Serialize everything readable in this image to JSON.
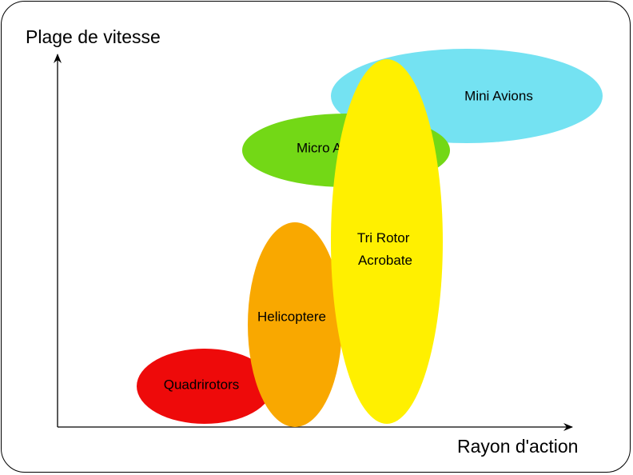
{
  "diagram": {
    "y_axis_title": "Plage de vitesse",
    "x_axis_title": "Rayon d'action",
    "zones": [
      {
        "name": "mini-avions",
        "lines": [
          "Mini Avions"
        ],
        "color": "#74e2f2"
      },
      {
        "name": "micro-avions",
        "lines": [
          "Micro Avions"
        ],
        "color": "#73d816"
      },
      {
        "name": "quadrirotors",
        "lines": [
          "Quadrirotors"
        ],
        "color": "#ee0a0a"
      },
      {
        "name": "helicoptere",
        "lines": [
          "Helicoptere"
        ],
        "color": "#f9a800"
      },
      {
        "name": "tri-rotor-acrobate",
        "lines": [
          "Tri Rotor",
          "Acrobate"
        ],
        "color": "#fff000"
      }
    ]
  }
}
